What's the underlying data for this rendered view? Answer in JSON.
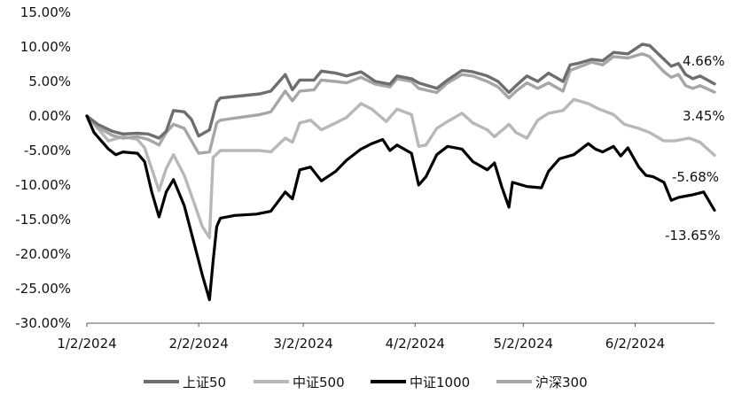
{
  "chart_data": {
    "type": "line",
    "title": "",
    "xlabel": "",
    "ylabel": "",
    "x_range": [
      "2024-01-02",
      "2024-06-24"
    ],
    "ylim": [
      -30,
      15
    ],
    "y_ticks": [
      "15.00%",
      "10.00%",
      "5.00%",
      "0.00%",
      "-5.00%",
      "-10.00%",
      "-15.00%",
      "-20.00%",
      "-25.00%",
      "-30.00%"
    ],
    "y_tick_values": [
      15,
      10,
      5,
      0,
      -5,
      -10,
      -15,
      -20,
      -25,
      -30
    ],
    "x_ticks": [
      "1/2/2024",
      "2/2/2024",
      "3/2/2024",
      "4/2/2024",
      "5/2/2024",
      "6/2/2024"
    ],
    "x_tick_dates": [
      "2024-01-02",
      "2024-02-02",
      "2024-03-02",
      "2024-04-02",
      "2024-05-02",
      "2024-06-02"
    ],
    "grid": false,
    "legend_position": "bottom",
    "series": [
      {
        "name": "上证50",
        "color": "#6e6e6e",
        "end_label": "4.66%",
        "points": [
          [
            "2024-01-02",
            0
          ],
          [
            "2024-01-05",
            -1.2
          ],
          [
            "2024-01-09",
            -2.2
          ],
          [
            "2024-01-12",
            -2.6
          ],
          [
            "2024-01-16",
            -2.5
          ],
          [
            "2024-01-19",
            -2.6
          ],
          [
            "2024-01-22",
            -3.2
          ],
          [
            "2024-01-24",
            -2.2
          ],
          [
            "2024-01-26",
            0.8
          ],
          [
            "2024-01-29",
            0.6
          ],
          [
            "2024-01-31",
            -0.5
          ],
          [
            "2024-02-02",
            -2.9
          ],
          [
            "2024-02-05",
            -2.0
          ],
          [
            "2024-02-07",
            2.0
          ],
          [
            "2024-02-08",
            2.6
          ],
          [
            "2024-02-19",
            3.2
          ],
          [
            "2024-02-22",
            3.6
          ],
          [
            "2024-02-26",
            6.0
          ],
          [
            "2024-02-28",
            3.8
          ],
          [
            "2024-03-01",
            5.2
          ],
          [
            "2024-03-05",
            5.2
          ],
          [
            "2024-03-07",
            6.5
          ],
          [
            "2024-03-11",
            6.2
          ],
          [
            "2024-03-14",
            5.8
          ],
          [
            "2024-03-18",
            6.4
          ],
          [
            "2024-03-22",
            5.0
          ],
          [
            "2024-03-26",
            4.6
          ],
          [
            "2024-03-28",
            5.8
          ],
          [
            "2024-04-01",
            5.4
          ],
          [
            "2024-04-03",
            4.8
          ],
          [
            "2024-04-08",
            4.0
          ],
          [
            "2024-04-11",
            5.2
          ],
          [
            "2024-04-15",
            6.6
          ],
          [
            "2024-04-18",
            6.4
          ],
          [
            "2024-04-22",
            5.8
          ],
          [
            "2024-04-25",
            5.0
          ],
          [
            "2024-04-28",
            3.4
          ],
          [
            "2024-04-30",
            4.4
          ],
          [
            "2024-05-03",
            5.8
          ],
          [
            "2024-05-06",
            5.0
          ],
          [
            "2024-05-09",
            6.2
          ],
          [
            "2024-05-13",
            5.0
          ],
          [
            "2024-05-15",
            7.4
          ],
          [
            "2024-05-17",
            7.6
          ],
          [
            "2024-05-21",
            8.2
          ],
          [
            "2024-05-24",
            8.0
          ],
          [
            "2024-05-27",
            9.2
          ],
          [
            "2024-05-31",
            9.0
          ],
          [
            "2024-06-04",
            10.4
          ],
          [
            "2024-06-06",
            10.2
          ],
          [
            "2024-06-10",
            8.2
          ],
          [
            "2024-06-12",
            7.2
          ],
          [
            "2024-06-14",
            7.6
          ],
          [
            "2024-06-16",
            6.0
          ],
          [
            "2024-06-18",
            5.4
          ],
          [
            "2024-06-20",
            5.8
          ],
          [
            "2024-06-24",
            4.66
          ]
        ]
      },
      {
        "name": "中证500",
        "color": "#b8b8b8",
        "end_label": "-5.68%",
        "points": [
          [
            "2024-01-02",
            0
          ],
          [
            "2024-01-05",
            -1.8
          ],
          [
            "2024-01-08",
            -3.6
          ],
          [
            "2024-01-12",
            -3.0
          ],
          [
            "2024-01-16",
            -3.4
          ],
          [
            "2024-01-18",
            -4.6
          ],
          [
            "2024-01-22",
            -10.8
          ],
          [
            "2024-01-24",
            -7.6
          ],
          [
            "2024-01-26",
            -5.6
          ],
          [
            "2024-01-29",
            -8.6
          ],
          [
            "2024-02-01",
            -13.0
          ],
          [
            "2024-02-03",
            -16.0
          ],
          [
            "2024-02-05",
            -17.6
          ],
          [
            "2024-02-06",
            -6.0
          ],
          [
            "2024-02-08",
            -5.0
          ],
          [
            "2024-02-19",
            -5.0
          ],
          [
            "2024-02-22",
            -5.2
          ],
          [
            "2024-02-26",
            -3.2
          ],
          [
            "2024-02-28",
            -3.8
          ],
          [
            "2024-03-01",
            -1.0
          ],
          [
            "2024-03-04",
            -0.6
          ],
          [
            "2024-03-07",
            -2.0
          ],
          [
            "2024-03-11",
            -1.0
          ],
          [
            "2024-03-14",
            -0.2
          ],
          [
            "2024-03-18",
            1.8
          ],
          [
            "2024-03-21",
            1.0
          ],
          [
            "2024-03-25",
            -0.8
          ],
          [
            "2024-03-28",
            1.0
          ],
          [
            "2024-04-01",
            0.2
          ],
          [
            "2024-04-03",
            -4.4
          ],
          [
            "2024-04-05",
            -4.2
          ],
          [
            "2024-04-08",
            -1.8
          ],
          [
            "2024-04-11",
            -0.8
          ],
          [
            "2024-04-15",
            0.4
          ],
          [
            "2024-04-18",
            -1.0
          ],
          [
            "2024-04-22",
            -2.0
          ],
          [
            "2024-04-24",
            -3.0
          ],
          [
            "2024-04-28",
            -1.2
          ],
          [
            "2024-04-30",
            -2.4
          ],
          [
            "2024-05-03",
            -3.2
          ],
          [
            "2024-05-06",
            -0.6
          ],
          [
            "2024-05-09",
            0.4
          ],
          [
            "2024-05-13",
            0.8
          ],
          [
            "2024-05-16",
            2.4
          ],
          [
            "2024-05-20",
            1.8
          ],
          [
            "2024-05-23",
            1.0
          ],
          [
            "2024-05-27",
            0.2
          ],
          [
            "2024-05-30",
            -1.2
          ],
          [
            "2024-06-03",
            -1.8
          ],
          [
            "2024-06-06",
            -2.4
          ],
          [
            "2024-06-10",
            -3.6
          ],
          [
            "2024-06-13",
            -3.6
          ],
          [
            "2024-06-17",
            -3.2
          ],
          [
            "2024-06-20",
            -3.8
          ],
          [
            "2024-06-23",
            -5.2
          ],
          [
            "2024-06-24",
            -5.68
          ]
        ]
      },
      {
        "name": "中证1000",
        "color": "#000000",
        "end_label": "-13.65%",
        "points": [
          [
            "2024-01-02",
            0
          ],
          [
            "2024-01-04",
            -2.4
          ],
          [
            "2024-01-08",
            -4.8
          ],
          [
            "2024-01-10",
            -5.6
          ],
          [
            "2024-01-12",
            -5.2
          ],
          [
            "2024-01-16",
            -5.4
          ],
          [
            "2024-01-18",
            -6.6
          ],
          [
            "2024-01-20",
            -11.0
          ],
          [
            "2024-01-22",
            -14.6
          ],
          [
            "2024-01-24",
            -11.0
          ],
          [
            "2024-01-26",
            -9.2
          ],
          [
            "2024-01-29",
            -13.0
          ],
          [
            "2024-02-01",
            -19.0
          ],
          [
            "2024-02-03",
            -23.0
          ],
          [
            "2024-02-05",
            -26.6
          ],
          [
            "2024-02-06",
            -21.0
          ],
          [
            "2024-02-07",
            -16.0
          ],
          [
            "2024-02-08",
            -14.8
          ],
          [
            "2024-02-12",
            -14.4
          ],
          [
            "2024-02-18",
            -14.2
          ],
          [
            "2024-02-22",
            -13.8
          ],
          [
            "2024-02-26",
            -11.0
          ],
          [
            "2024-02-28",
            -12.0
          ],
          [
            "2024-03-01",
            -7.8
          ],
          [
            "2024-03-04",
            -7.4
          ],
          [
            "2024-03-07",
            -9.4
          ],
          [
            "2024-03-11",
            -8.0
          ],
          [
            "2024-03-14",
            -6.4
          ],
          [
            "2024-03-18",
            -4.8
          ],
          [
            "2024-03-21",
            -4.0
          ],
          [
            "2024-03-24",
            -3.4
          ],
          [
            "2024-03-26",
            -5.0
          ],
          [
            "2024-03-28",
            -4.2
          ],
          [
            "2024-04-01",
            -5.4
          ],
          [
            "2024-04-03",
            -10.0
          ],
          [
            "2024-04-05",
            -8.8
          ],
          [
            "2024-04-08",
            -5.6
          ],
          [
            "2024-04-11",
            -4.4
          ],
          [
            "2024-04-15",
            -4.8
          ],
          [
            "2024-04-18",
            -6.6
          ],
          [
            "2024-04-22",
            -7.8
          ],
          [
            "2024-04-24",
            -6.8
          ],
          [
            "2024-04-26",
            -10.2
          ],
          [
            "2024-04-28",
            -13.2
          ],
          [
            "2024-04-29",
            -9.6
          ],
          [
            "2024-05-03",
            -10.2
          ],
          [
            "2024-05-07",
            -10.4
          ],
          [
            "2024-05-09",
            -8.0
          ],
          [
            "2024-05-12",
            -6.2
          ],
          [
            "2024-05-16",
            -5.6
          ],
          [
            "2024-05-20",
            -4.0
          ],
          [
            "2024-05-22",
            -4.8
          ],
          [
            "2024-05-24",
            -5.2
          ],
          [
            "2024-05-27",
            -4.4
          ],
          [
            "2024-05-29",
            -5.8
          ],
          [
            "2024-05-31",
            -4.6
          ],
          [
            "2024-06-03",
            -7.4
          ],
          [
            "2024-06-05",
            -8.6
          ],
          [
            "2024-06-07",
            -8.8
          ],
          [
            "2024-06-10",
            -9.6
          ],
          [
            "2024-06-12",
            -12.2
          ],
          [
            "2024-06-14",
            -11.8
          ],
          [
            "2024-06-18",
            -11.4
          ],
          [
            "2024-06-21",
            -11.0
          ],
          [
            "2024-06-24",
            -13.65
          ]
        ]
      },
      {
        "name": "沪深300",
        "color": "#a6a6a6",
        "end_label": "3.45%",
        "points": [
          [
            "2024-01-02",
            0
          ],
          [
            "2024-01-05",
            -1.6
          ],
          [
            "2024-01-09",
            -2.8
          ],
          [
            "2024-01-12",
            -3.2
          ],
          [
            "2024-01-16",
            -3.0
          ],
          [
            "2024-01-19",
            -3.4
          ],
          [
            "2024-01-22",
            -4.2
          ],
          [
            "2024-01-24",
            -2.4
          ],
          [
            "2024-01-26",
            -1.2
          ],
          [
            "2024-01-29",
            -1.8
          ],
          [
            "2024-01-31",
            -3.6
          ],
          [
            "2024-02-02",
            -5.4
          ],
          [
            "2024-02-05",
            -5.2
          ],
          [
            "2024-02-07",
            -1.0
          ],
          [
            "2024-02-08",
            -0.6
          ],
          [
            "2024-02-19",
            0.2
          ],
          [
            "2024-02-22",
            0.6
          ],
          [
            "2024-02-26",
            3.6
          ],
          [
            "2024-02-28",
            2.2
          ],
          [
            "2024-03-01",
            3.6
          ],
          [
            "2024-03-05",
            3.8
          ],
          [
            "2024-03-07",
            5.2
          ],
          [
            "2024-03-11",
            5.0
          ],
          [
            "2024-03-14",
            4.8
          ],
          [
            "2024-03-18",
            5.6
          ],
          [
            "2024-03-22",
            4.6
          ],
          [
            "2024-03-26",
            4.2
          ],
          [
            "2024-03-28",
            5.4
          ],
          [
            "2024-04-01",
            5.0
          ],
          [
            "2024-04-03",
            4.0
          ],
          [
            "2024-04-08",
            3.4
          ],
          [
            "2024-04-11",
            4.8
          ],
          [
            "2024-04-15",
            6.0
          ],
          [
            "2024-04-18",
            5.8
          ],
          [
            "2024-04-22",
            5.0
          ],
          [
            "2024-04-25",
            4.2
          ],
          [
            "2024-04-28",
            2.6
          ],
          [
            "2024-04-30",
            3.6
          ],
          [
            "2024-05-03",
            4.8
          ],
          [
            "2024-05-06",
            4.0
          ],
          [
            "2024-05-09",
            4.8
          ],
          [
            "2024-05-13",
            3.6
          ],
          [
            "2024-05-15",
            6.6
          ],
          [
            "2024-05-17",
            7.0
          ],
          [
            "2024-05-21",
            7.8
          ],
          [
            "2024-05-24",
            7.4
          ],
          [
            "2024-05-27",
            8.6
          ],
          [
            "2024-05-31",
            8.4
          ],
          [
            "2024-06-04",
            9.0
          ],
          [
            "2024-06-06",
            8.6
          ],
          [
            "2024-06-10",
            6.4
          ],
          [
            "2024-06-12",
            5.6
          ],
          [
            "2024-06-14",
            6.0
          ],
          [
            "2024-06-16",
            4.4
          ],
          [
            "2024-06-18",
            4.0
          ],
          [
            "2024-06-20",
            4.4
          ],
          [
            "2024-06-24",
            3.45
          ]
        ]
      }
    ],
    "legend_order": [
      0,
      1,
      2,
      3
    ]
  }
}
